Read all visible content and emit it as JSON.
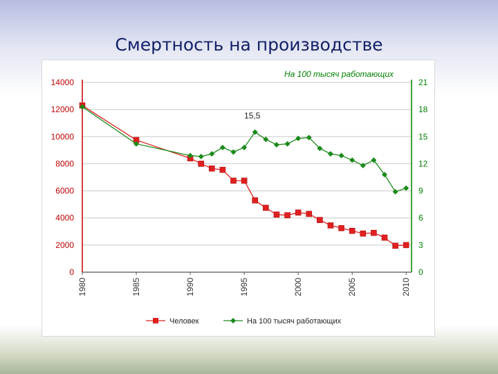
{
  "slide": {
    "title": "Смертность на производстве"
  },
  "chart_data": {
    "type": "line",
    "x_ticks": [
      1980,
      1985,
      1990,
      1995,
      2000,
      2005,
      2010
    ],
    "xlim": [
      1980,
      2010.5
    ],
    "y_left": {
      "lim": [
        0,
        14000
      ],
      "ticks": [
        0,
        2000,
        4000,
        6000,
        8000,
        10000,
        12000,
        14000
      ],
      "color": "#c00000"
    },
    "y_right": {
      "lim": [
        0,
        21
      ],
      "ticks": [
        0,
        3,
        6,
        9,
        12,
        15,
        18,
        21
      ],
      "color": "#008000"
    },
    "grid": true,
    "legend_position": "bottom",
    "series": [
      {
        "name": "Человек",
        "axis": "left",
        "color": "#e02020",
        "marker": "square",
        "points": [
          [
            1980,
            12300
          ],
          [
            1985,
            9750
          ],
          [
            1990,
            8400
          ],
          [
            1991,
            8000
          ],
          [
            1992,
            7650
          ],
          [
            1993,
            7550
          ],
          [
            1994,
            6750
          ],
          [
            1995,
            6750
          ],
          [
            1996,
            5300
          ],
          [
            1997,
            4750
          ],
          [
            1998,
            4250
          ],
          [
            1999,
            4200
          ],
          [
            2000,
            4400
          ],
          [
            2001,
            4300
          ],
          [
            2002,
            3850
          ],
          [
            2003,
            3450
          ],
          [
            2004,
            3250
          ],
          [
            2005,
            3050
          ],
          [
            2006,
            2850
          ],
          [
            2007,
            2900
          ],
          [
            2008,
            2550
          ],
          [
            2009,
            1950
          ],
          [
            2010,
            2000
          ]
        ]
      },
      {
        "name": "На 100 тысяч работающих",
        "axis": "right",
        "color": "#1a8a1a",
        "marker": "diamond",
        "points": [
          [
            1980,
            18.3
          ],
          [
            1985,
            14.2
          ],
          [
            1990,
            12.9
          ],
          [
            1991,
            12.8
          ],
          [
            1992,
            13.1
          ],
          [
            1993,
            13.8
          ],
          [
            1994,
            13.3
          ],
          [
            1995,
            13.8
          ],
          [
            1996,
            15.5
          ],
          [
            1997,
            14.7
          ],
          [
            1998,
            14.1
          ],
          [
            1999,
            14.2
          ],
          [
            2000,
            14.8
          ],
          [
            2001,
            14.9
          ],
          [
            2002,
            13.7
          ],
          [
            2003,
            13.1
          ],
          [
            2004,
            12.9
          ],
          [
            2005,
            12.4
          ],
          [
            2006,
            11.8
          ],
          [
            2007,
            12.4
          ],
          [
            2008,
            10.8
          ],
          [
            2009,
            8.9
          ],
          [
            2010,
            9.3
          ]
        ]
      }
    ],
    "annotations": [
      {
        "text": "15,5",
        "x": 1996,
        "y": 15.5,
        "axis": "right"
      },
      {
        "text": "На 100 тысяч работающих",
        "position": "top-right"
      }
    ]
  }
}
